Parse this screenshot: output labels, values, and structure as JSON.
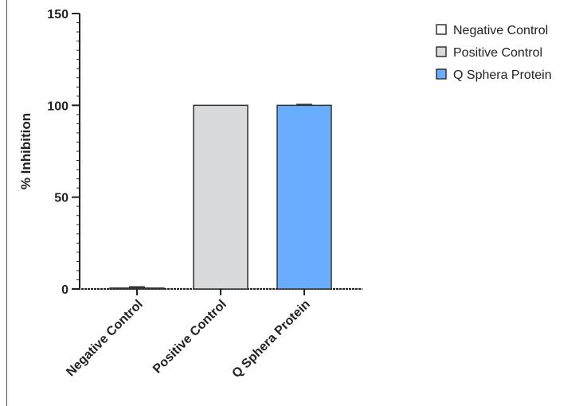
{
  "chart_data": {
    "type": "bar",
    "title": "",
    "xlabel": "",
    "ylabel": "% Inhibition",
    "ylim": [
      0,
      150
    ],
    "yticks": [
      0,
      50,
      100,
      150
    ],
    "grid": false,
    "legend_position": "top-right",
    "categories": [
      "Negative Control",
      "Positive Control",
      "Q Sphera Protein"
    ],
    "values": [
      0.5,
      100,
      100
    ],
    "errors": [
      0.6,
      0,
      0.4
    ],
    "colors": [
      "#ffffff",
      "#d9dadb",
      "#69adff"
    ]
  }
}
